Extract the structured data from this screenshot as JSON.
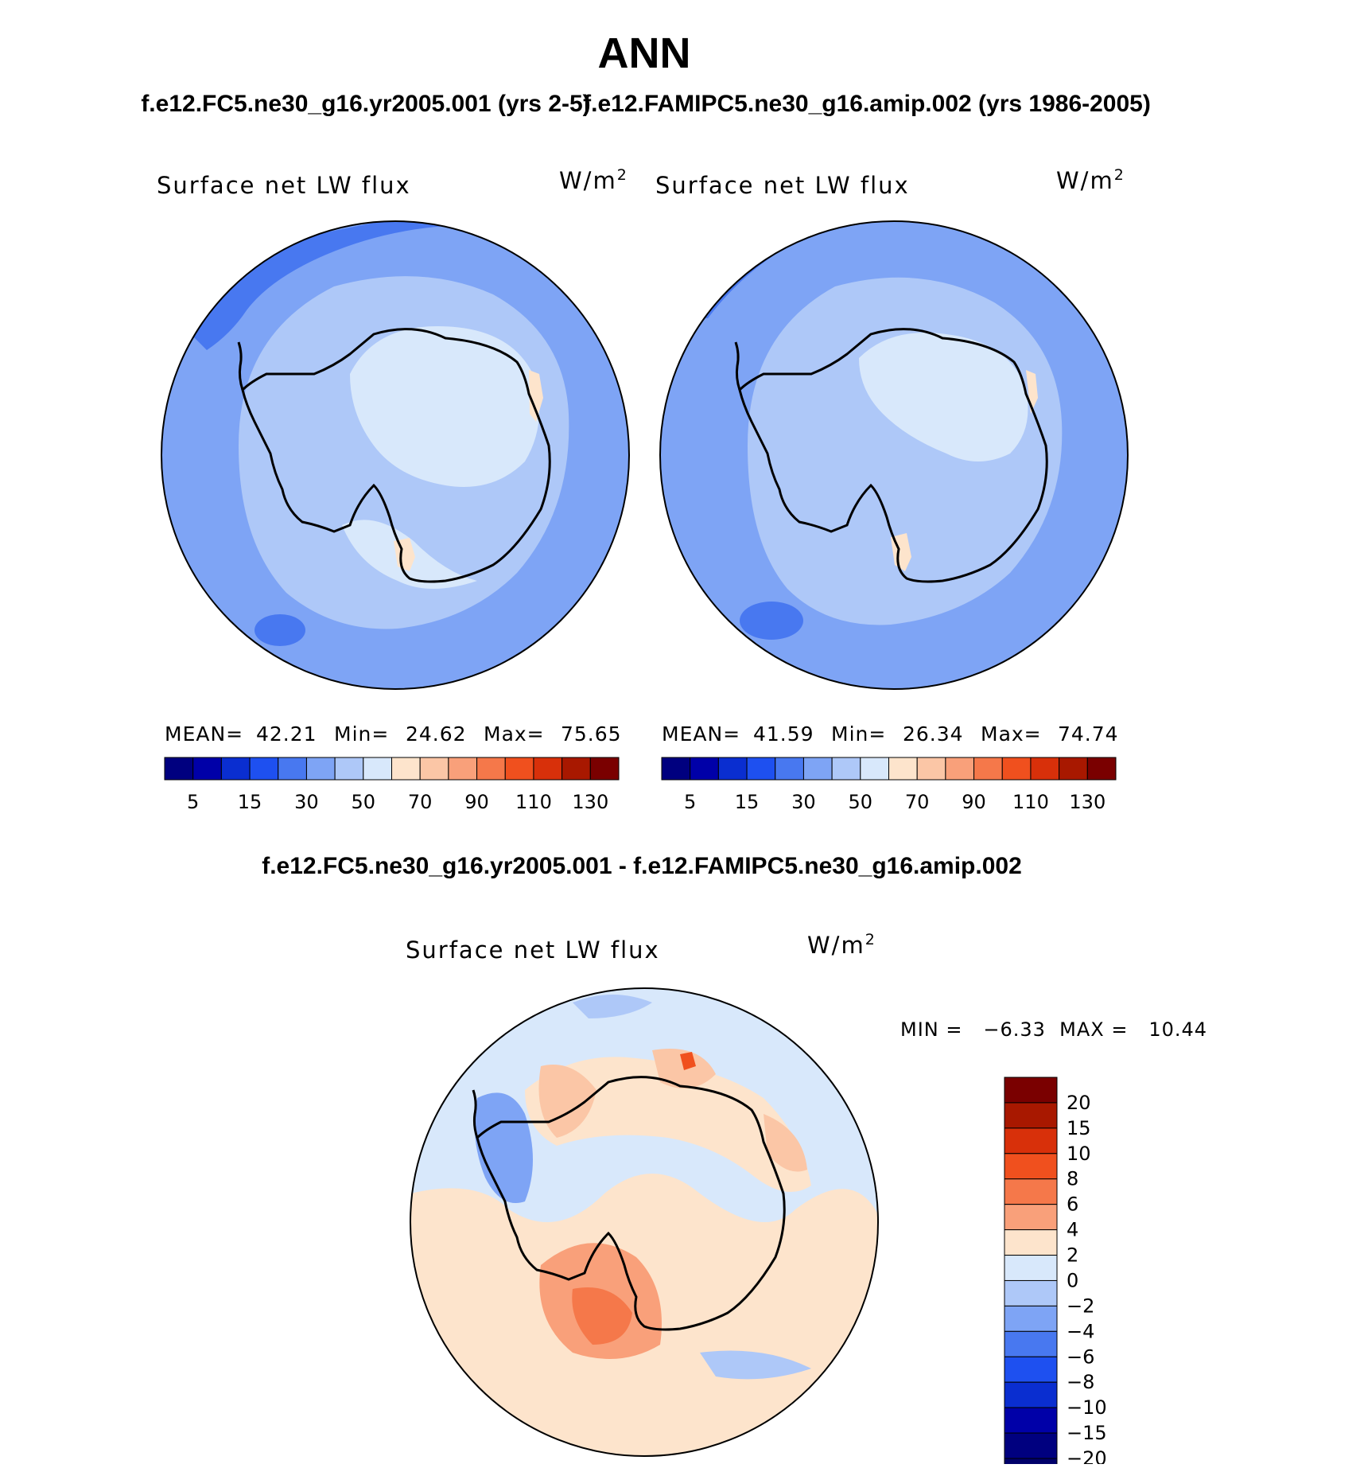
{
  "page": {
    "title": "ANN",
    "left_case_title": "f.e12.FC5.ne30_g16.yr2005.001 (yrs 2-5)",
    "right_case_title": "f.e12.FAMIPC5.ne30_g16.amip.002 (yrs 1986-2005)",
    "diff_title": "f.e12.FC5.ne30_g16.yr2005.001 - f.e12.FAMIPC5.ne30_g16.amip.002"
  },
  "panels": [
    {
      "variable": "Surface net LW flux",
      "units_base": "W/m",
      "units_exp": "2",
      "mean_label": "MEAN=",
      "mean": "42.21",
      "min_label": "Min=",
      "min": "24.62",
      "max_label": "Max=",
      "max": "75.65"
    },
    {
      "variable": "Surface net LW flux",
      "units_base": "W/m",
      "units_exp": "2",
      "mean_label": "MEAN=",
      "mean": "41.59",
      "min_label": "Min=",
      "min": "26.34",
      "max_label": "Max=",
      "max": "74.74"
    }
  ],
  "diff_panel": {
    "variable": "Surface net LW flux",
    "units_base": "W/m",
    "units_exp": "2",
    "minmax_text": "MIN =   −6.33  MAX =   10.44"
  },
  "colorbar_top": {
    "colors": [
      "#00007f",
      "#0000a8",
      "#0a2ed0",
      "#1e50f0",
      "#4878f0",
      "#7ea4f5",
      "#aec8f8",
      "#d8e8fb",
      "#fde4cc",
      "#fbc6a6",
      "#f9a07a",
      "#f5784a",
      "#f0501e",
      "#d8300a",
      "#a81800",
      "#7a0000"
    ],
    "tick_labels": [
      "5",
      "15",
      "30",
      "50",
      "70",
      "90",
      "110",
      "130"
    ]
  },
  "colorbar_diff": {
    "colors": [
      "#7a0000",
      "#a81800",
      "#d8300a",
      "#f0501e",
      "#f5784a",
      "#f9a07a",
      "#fde4cc",
      "#d8e8fb",
      "#aec8f8",
      "#7ea4f5",
      "#4878f0",
      "#1e50f0",
      "#0a2ed0",
      "#0000a8",
      "#00007f"
    ],
    "tick_labels": [
      "20",
      "15",
      "10",
      "8",
      "6",
      "4",
      "2",
      "0",
      "−2",
      "−4",
      "−6",
      "−8",
      "−10",
      "−15",
      "−20"
    ]
  }
}
